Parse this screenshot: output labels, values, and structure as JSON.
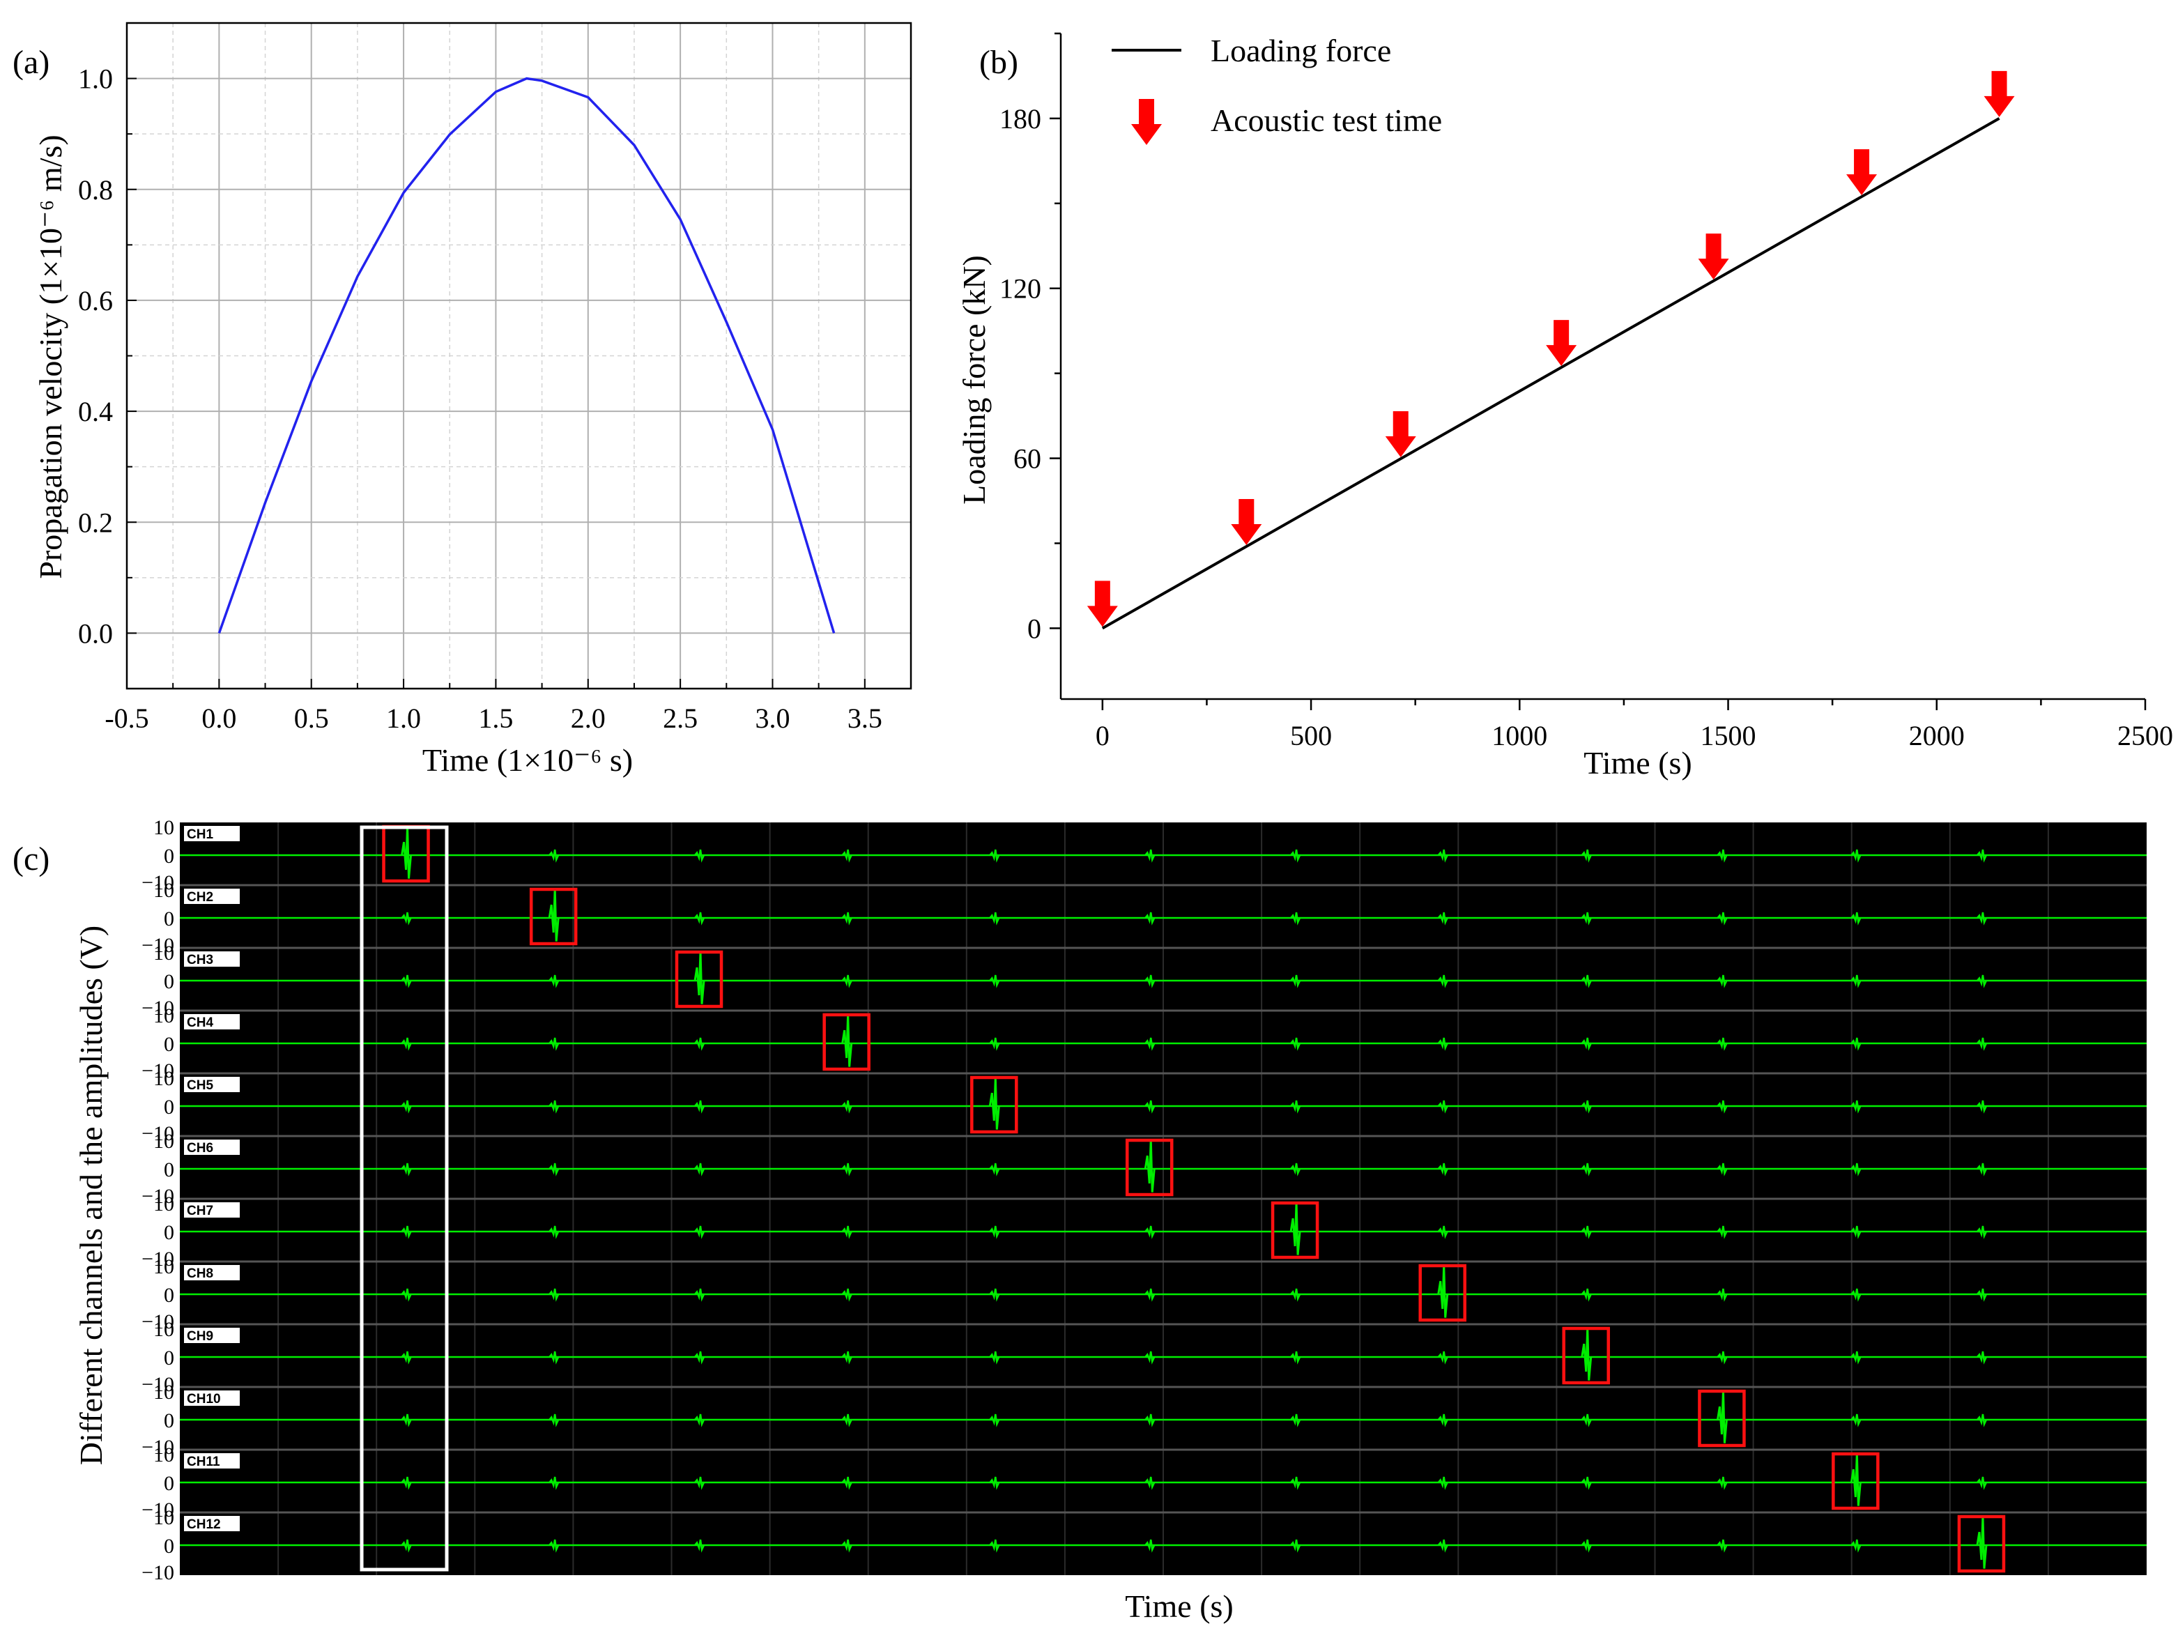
{
  "chart_data": [
    {
      "panel": "(a)",
      "type": "line",
      "xlabel": "Time (1×10⁻⁶ s)",
      "ylabel": "Propagation velocity (1×10⁻⁶ m/s)",
      "xlim": [
        -0.5,
        3.75
      ],
      "ylim": [
        -0.1,
        1.1
      ],
      "xticks": [
        "-0.5",
        "0.0",
        "0.5",
        "1.0",
        "1.5",
        "2.0",
        "2.5",
        "3.0",
        "3.5"
      ],
      "yticks": [
        "0.0",
        "0.2",
        "0.4",
        "0.6",
        "0.8",
        "1.0"
      ],
      "grid": true,
      "series": [
        {
          "color": "#2222ee",
          "x": [
            0.0,
            0.25,
            0.5,
            0.75,
            1.0,
            1.25,
            1.5,
            1.667,
            1.75,
            2.0,
            2.25,
            2.5,
            2.75,
            3.0,
            3.333
          ],
          "y": [
            0.0,
            0.235,
            0.454,
            0.643,
            0.794,
            0.899,
            0.976,
            1.0,
            0.996,
            0.966,
            0.88,
            0.746,
            0.561,
            0.367,
            0.0
          ]
        }
      ]
    },
    {
      "panel": "(b)",
      "type": "line",
      "xlabel": "Time (s)",
      "ylabel": "Loading force (kN)",
      "xlim": [
        -100,
        2500
      ],
      "ylim": [
        -25,
        210
      ],
      "xticks": [
        "0",
        "500",
        "1000",
        "1500",
        "2000",
        "2500"
      ],
      "yticks": [
        "0",
        "60",
        "120",
        "180"
      ],
      "grid": false,
      "legend_position": "top-left",
      "series": [
        {
          "name": "Loading force",
          "color": "#000000",
          "x": [
            0,
            2150
          ],
          "y": [
            0,
            180
          ]
        }
      ],
      "markers": {
        "name": "Acoustic test time",
        "color": "#ff0000",
        "x": [
          0,
          345,
          715,
          1100,
          1465,
          1820,
          2150
        ],
        "y": [
          0,
          28.9,
          59.9,
          92.1,
          122.6,
          152.4,
          180
        ]
      }
    },
    {
      "panel": "(c)",
      "type": "line",
      "xlabel": "Time (s)",
      "ylabel": "Different channels  and the amplitudes (V)",
      "background": "#000000",
      "trace_color": "#00ee00",
      "highlight_color": "#ff1111",
      "group_box_color": "#ffffff",
      "ytick_labels": [
        "10",
        "0",
        "−10"
      ],
      "channels": [
        "CH1",
        "CH2",
        "CH3",
        "CH4",
        "CH5",
        "CH6",
        "CH7",
        "CH8",
        "CH9",
        "CH10",
        "CH11",
        "CH12"
      ],
      "event_positions": [
        0.115,
        0.19,
        0.264,
        0.339,
        0.414,
        0.493,
        0.567,
        0.642,
        0.715,
        0.784,
        0.852,
        0.916
      ],
      "highlighted_event_per_channel": [
        0,
        1,
        2,
        3,
        4,
        5,
        6,
        7,
        8,
        9,
        10,
        11
      ]
    }
  ]
}
